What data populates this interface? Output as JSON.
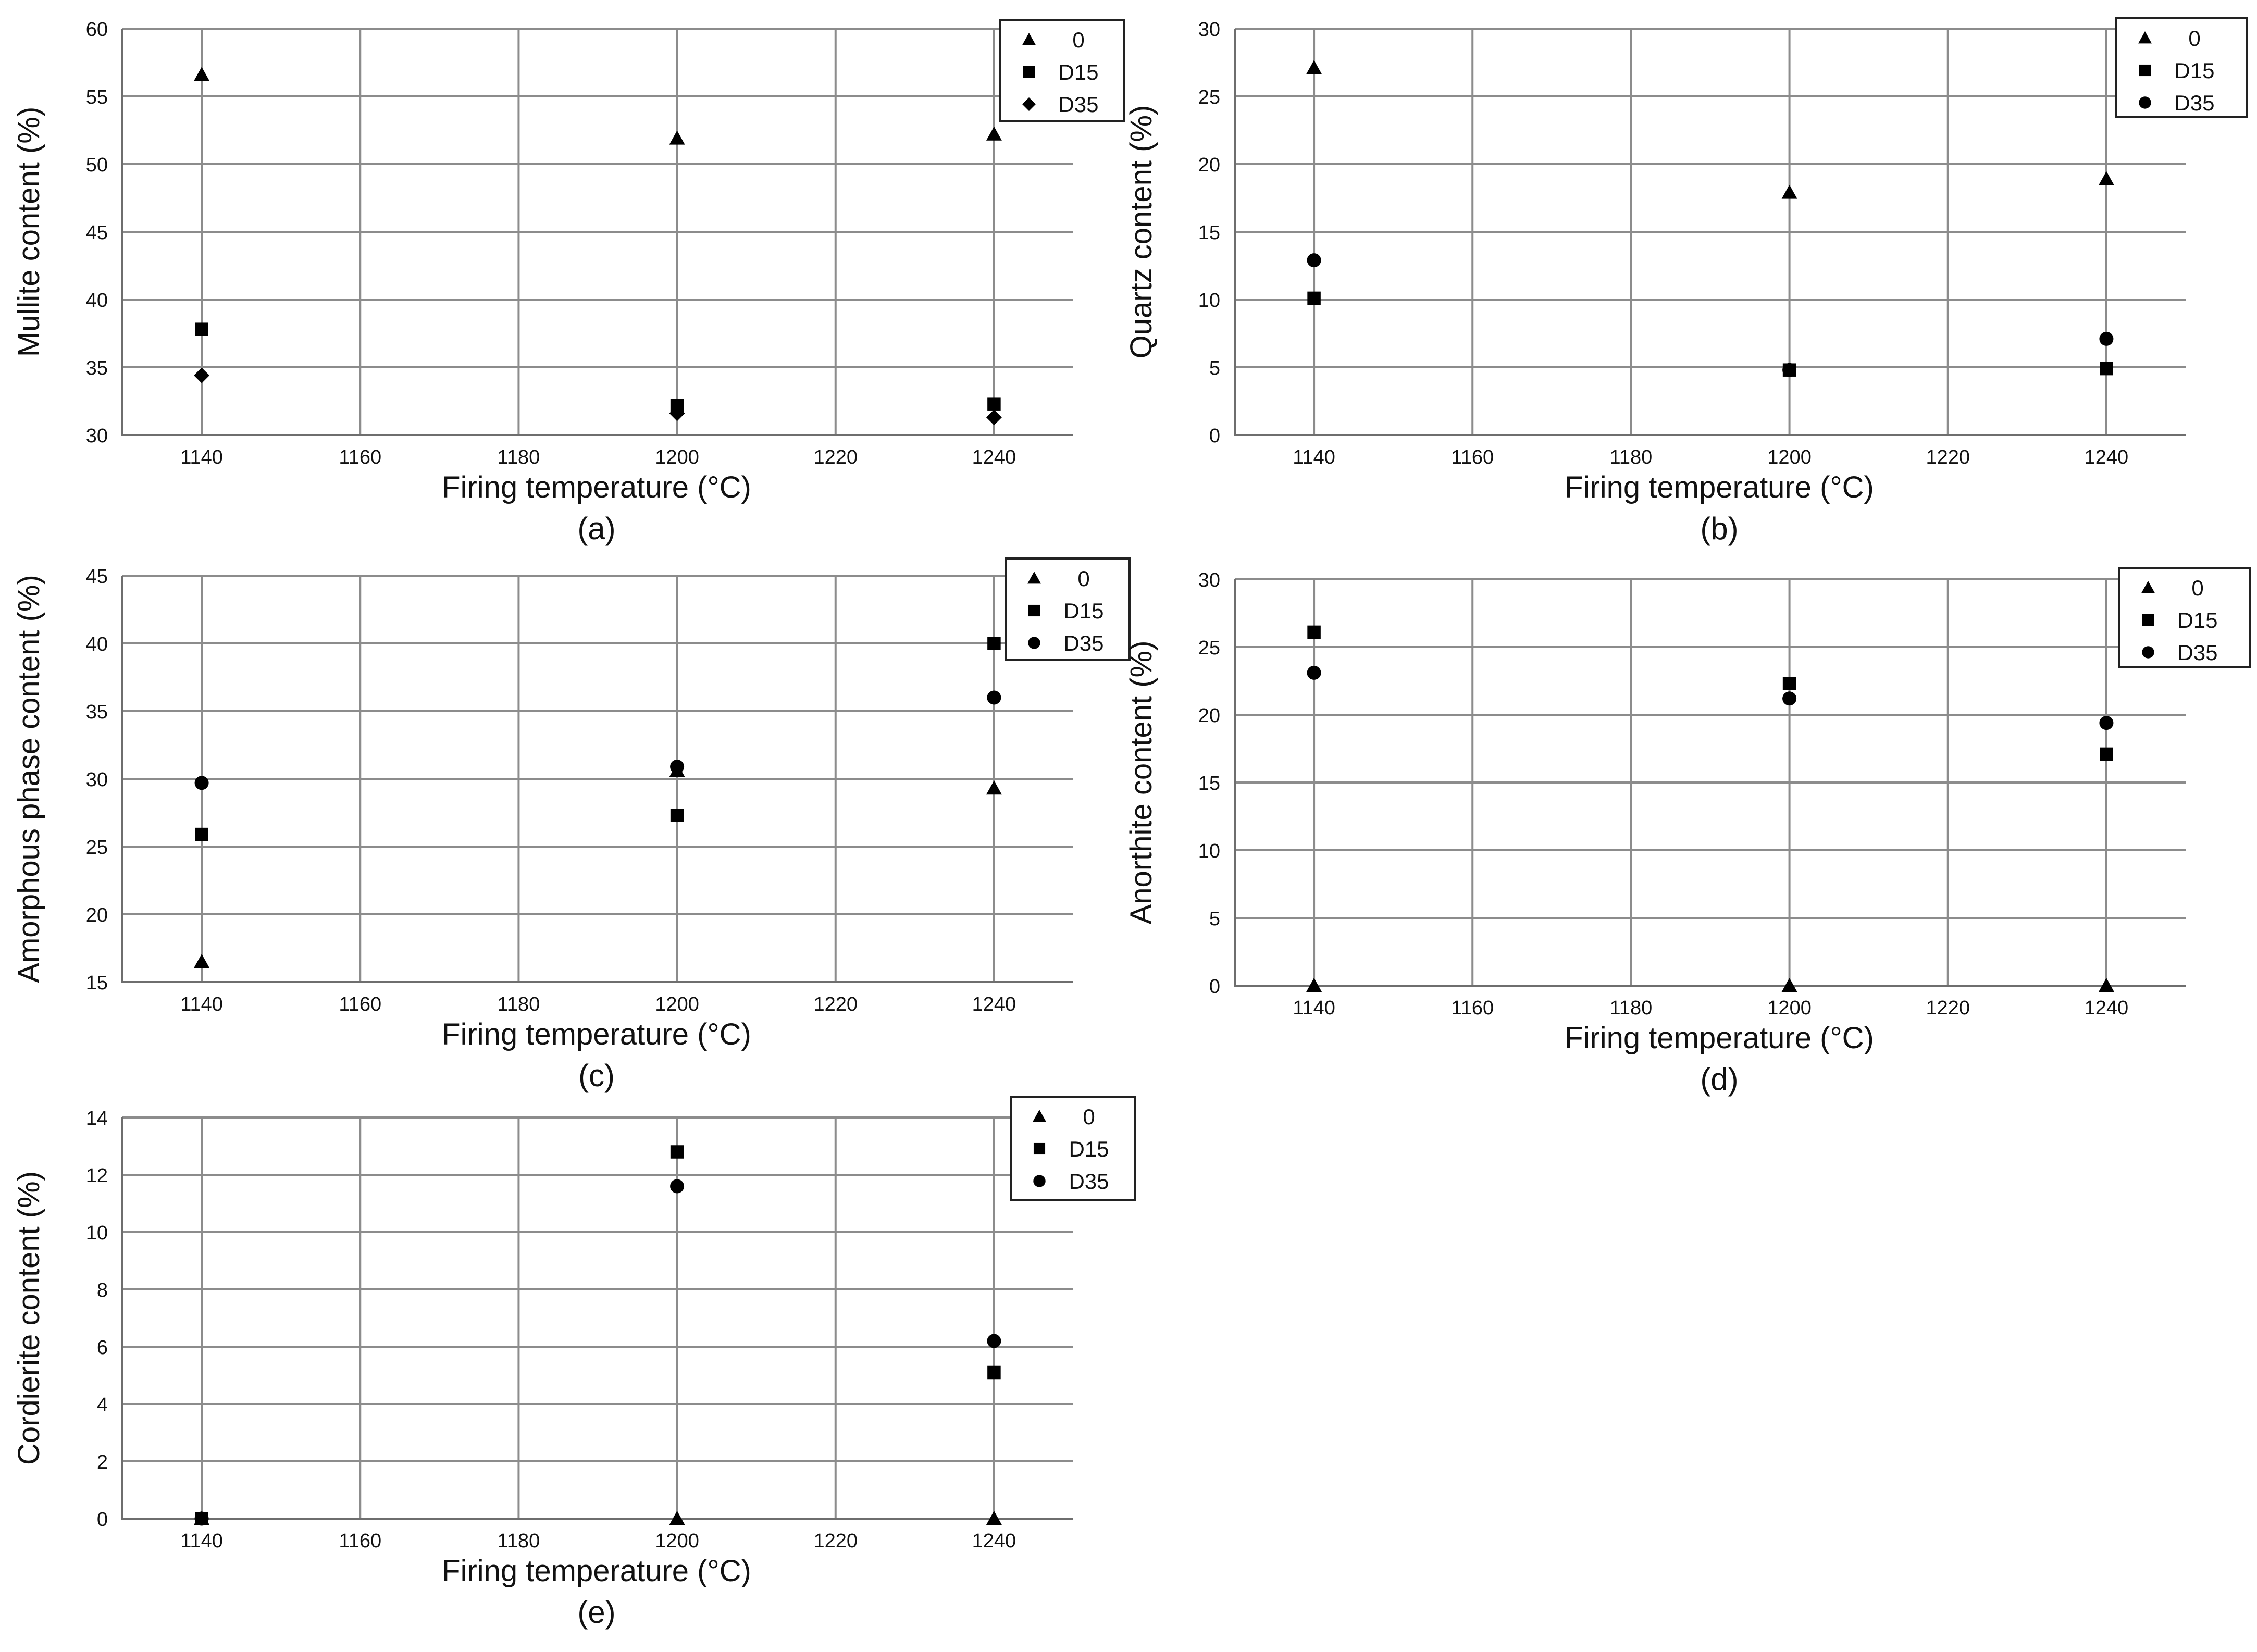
{
  "marker_color": "#000000",
  "grid_color": "#8c8c8c",
  "legend_position": "top-right",
  "grid": true,
  "chart_data": [
    {
      "panel": "(a)",
      "type": "scatter",
      "xlabel": "Firing temperature (°C)",
      "ylabel": "Mullite content (%)",
      "xlim": [
        1130,
        1250
      ],
      "ylim": [
        30,
        60
      ],
      "xticks": [
        1140,
        1160,
        1180,
        1200,
        1220,
        1240
      ],
      "yticks": [
        30,
        35,
        40,
        45,
        50,
        55,
        60
      ],
      "series": [
        {
          "name": "0",
          "marker": "triangle",
          "x": [
            1140,
            1200,
            1240
          ],
          "y": [
            56.6,
            51.9,
            52.2
          ]
        },
        {
          "name": "D15",
          "marker": "square",
          "x": [
            1140,
            1200,
            1240
          ],
          "y": [
            37.8,
            32.2,
            32.3
          ]
        },
        {
          "name": "D35",
          "marker": "diamond",
          "x": [
            1140,
            1200,
            1240
          ],
          "y": [
            34.4,
            31.6,
            31.3
          ]
        }
      ]
    },
    {
      "panel": "(b)",
      "type": "scatter",
      "xlabel": "Firing temperature (°C)",
      "ylabel": "Quartz content (%)",
      "xlim": [
        1130,
        1250
      ],
      "ylim": [
        0,
        30
      ],
      "xticks": [
        1140,
        1160,
        1180,
        1200,
        1220,
        1240
      ],
      "yticks": [
        0,
        5,
        10,
        15,
        20,
        25,
        30
      ],
      "series": [
        {
          "name": "0",
          "marker": "triangle",
          "x": [
            1140,
            1200,
            1240
          ],
          "y": [
            27.1,
            17.9,
            18.9
          ]
        },
        {
          "name": "D15",
          "marker": "square",
          "x": [
            1140,
            1200,
            1240
          ],
          "y": [
            10.1,
            4.8,
            4.9
          ]
        },
        {
          "name": "D35",
          "marker": "circle",
          "x": [
            1140,
            1200,
            1240
          ],
          "y": [
            12.9,
            4.8,
            7.1
          ]
        }
      ]
    },
    {
      "panel": "(c)",
      "type": "scatter",
      "xlabel": "Firing temperature (°C)",
      "ylabel": "Amorphous phase content (%)",
      "xlim": [
        1130,
        1250
      ],
      "ylim": [
        15,
        45
      ],
      "xticks": [
        1140,
        1160,
        1180,
        1200,
        1220,
        1240
      ],
      "yticks": [
        15,
        20,
        25,
        30,
        35,
        40,
        45
      ],
      "series": [
        {
          "name": "0",
          "marker": "triangle",
          "x": [
            1140,
            1200,
            1240
          ],
          "y": [
            16.5,
            30.6,
            29.3
          ]
        },
        {
          "name": "D15",
          "marker": "square",
          "x": [
            1140,
            1200,
            1240
          ],
          "y": [
            25.9,
            27.3,
            40.0
          ]
        },
        {
          "name": "D35",
          "marker": "circle",
          "x": [
            1140,
            1200,
            1240
          ],
          "y": [
            29.7,
            30.9,
            36.0
          ]
        }
      ]
    },
    {
      "panel": "(d)",
      "type": "scatter",
      "xlabel": "Firing temperature (°C)",
      "ylabel": "Anorthite content (%)",
      "xlim": [
        1130,
        1250
      ],
      "ylim": [
        0,
        30
      ],
      "xticks": [
        1140,
        1160,
        1180,
        1200,
        1220,
        1240
      ],
      "yticks": [
        0,
        5,
        10,
        15,
        20,
        25,
        30
      ],
      "series": [
        {
          "name": "0",
          "marker": "triangle",
          "x": [
            1140,
            1200,
            1240
          ],
          "y": [
            0,
            0,
            0
          ]
        },
        {
          "name": "D15",
          "marker": "square",
          "x": [
            1140,
            1200,
            1240
          ],
          "y": [
            26.1,
            22.3,
            17.1
          ]
        },
        {
          "name": "D35",
          "marker": "circle",
          "x": [
            1140,
            1200,
            1240
          ],
          "y": [
            23.1,
            21.2,
            19.4
          ]
        }
      ]
    },
    {
      "panel": "(e)",
      "type": "scatter",
      "xlabel": "Firing temperature (°C)",
      "ylabel": "Cordierite content (%)",
      "xlim": [
        1130,
        1250
      ],
      "ylim": [
        0,
        14
      ],
      "xticks": [
        1140,
        1160,
        1180,
        1200,
        1220,
        1240
      ],
      "yticks": [
        0,
        2,
        4,
        6,
        8,
        10,
        12,
        14
      ],
      "series": [
        {
          "name": "0",
          "marker": "triangle",
          "x": [
            1140,
            1200,
            1240
          ],
          "y": [
            0,
            0,
            0
          ]
        },
        {
          "name": "D15",
          "marker": "square",
          "x": [
            1140,
            1200,
            1240
          ],
          "y": [
            0,
            12.8,
            5.1
          ]
        },
        {
          "name": "D35",
          "marker": "circle",
          "x": [
            1140,
            1200,
            1240
          ],
          "y": [
            0,
            11.6,
            6.2
          ]
        }
      ]
    }
  ]
}
